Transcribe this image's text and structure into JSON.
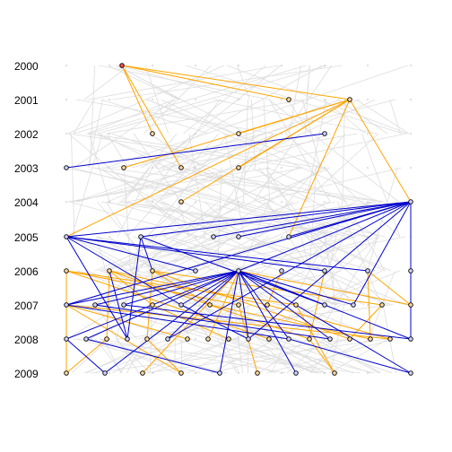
{
  "years": [
    "2000",
    "2001",
    "2002",
    "2003",
    "2004",
    "2005",
    "2006",
    "2007",
    "2008",
    "2009"
  ],
  "colors": {
    "background_edge": "#dddddd",
    "orange_edge": "#ffa500",
    "blue_edge": "#0000cd",
    "root_node_fill": "#ff4d4d",
    "node_fill_orange": "#ffd9a0",
    "node_fill_blue": "#cfd3ff",
    "node_stroke": "#000000"
  },
  "chart_data": {
    "type": "diagram",
    "layout": "layered citation graph by year",
    "note": ""
  }
}
